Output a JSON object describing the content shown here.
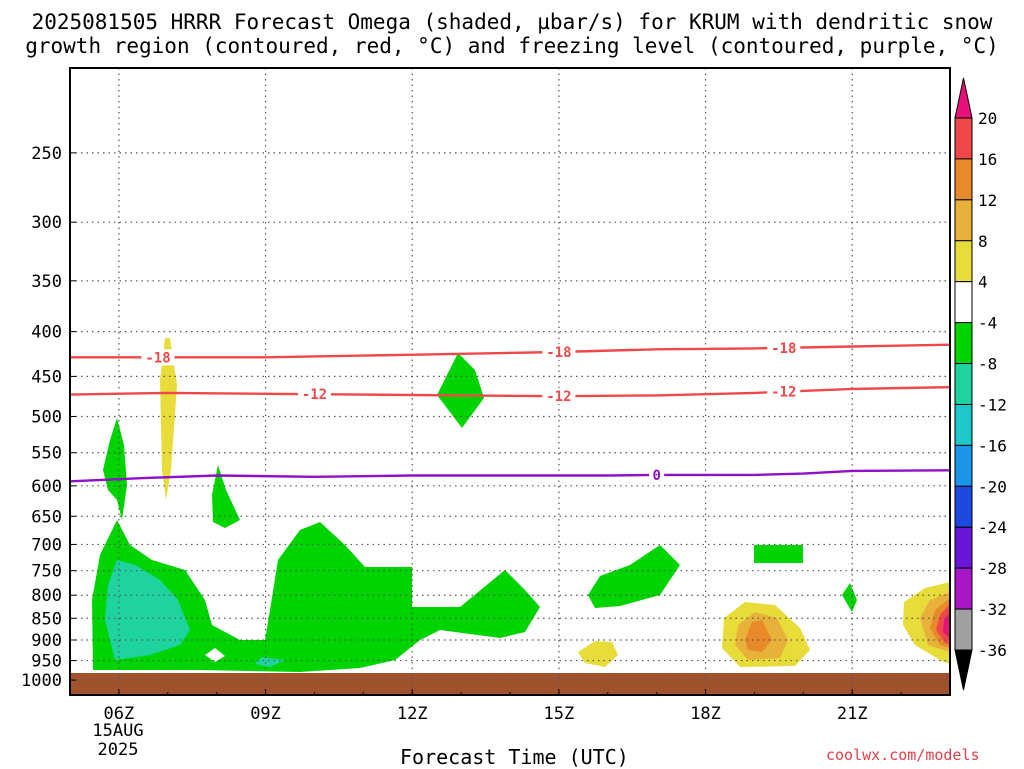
{
  "title_line1": "2025081505 HRRR Forecast Omega (shaded, µbar/s) for KRUM with dendritic snow",
  "title_line2": "growth region (contoured, red, °C) and freezing level (contoured, purple, °C)",
  "xlabel": "Forecast Time (UTC)",
  "credit": "coolwx.com/models",
  "date_line1": "15AUG",
  "date_line2": "2025",
  "colors": {
    "green": "#00d400",
    "teal": "#1fd3a0",
    "yellow": "#e8dc3a",
    "gold": "#e8b13a",
    "orange": "#e8892a",
    "red": "#f04848",
    "magenta": "#e8117a",
    "ground": "#a0522d",
    "dsg_contour": "#f04848",
    "freezing_contour": "#9010c8"
  },
  "chart_data": {
    "type": "contour",
    "x_axis": {
      "label": "Forecast Time (UTC)",
      "ticks": [
        "06Z",
        "09Z",
        "12Z",
        "15Z",
        "18Z",
        "21Z"
      ],
      "tick_hours": [
        6,
        9,
        12,
        15,
        18,
        21
      ],
      "range_hours": [
        5,
        23
      ]
    },
    "y_axis": {
      "units": "hPa",
      "ticks": [
        250,
        300,
        350,
        400,
        450,
        500,
        550,
        600,
        650,
        700,
        750,
        800,
        850,
        900,
        950,
        1000
      ],
      "range": [
        200,
        1040
      ],
      "scale": "log-pressure"
    },
    "colorbar": {
      "levels": [
        20,
        16,
        12,
        8,
        4,
        -4,
        -8,
        -12,
        -16,
        -20,
        -24,
        -28,
        -32,
        -36
      ],
      "colors": [
        "#e8117a",
        "#f04848",
        "#e8892a",
        "#e8b13a",
        "#e8dc3a",
        "#ffffff",
        "#00d400",
        "#1fd3a0",
        "#1cc8c8",
        "#1a96e8",
        "#1c4ae0",
        "#6a16d8",
        "#a816c8",
        "#a0a0a0",
        "#000000"
      ]
    },
    "contours": [
      {
        "label": "-18",
        "color": "#f04848",
        "points": [
          [
            5,
            428
          ],
          [
            7,
            428
          ],
          [
            9,
            428
          ],
          [
            11,
            426
          ],
          [
            13,
            424
          ],
          [
            15,
            422
          ],
          [
            17,
            419
          ],
          [
            19,
            418
          ],
          [
            21,
            416
          ],
          [
            23,
            414
          ]
        ],
        "label_hours": [
          6.8,
          15,
          19.6
        ]
      },
      {
        "label": "-12",
        "color": "#f04848",
        "points": [
          [
            5,
            472
          ],
          [
            7,
            470
          ],
          [
            9,
            471
          ],
          [
            11,
            472
          ],
          [
            13,
            473
          ],
          [
            15,
            474
          ],
          [
            17,
            473
          ],
          [
            19,
            470
          ],
          [
            21,
            465
          ],
          [
            23,
            463
          ]
        ],
        "label_hours": [
          10,
          15,
          19.6
        ]
      },
      {
        "label": "0",
        "color": "#9010c8",
        "points": [
          [
            5,
            593
          ],
          [
            6.5,
            588
          ],
          [
            8,
            584
          ],
          [
            10,
            586
          ],
          [
            12,
            584
          ],
          [
            14,
            584
          ],
          [
            16,
            584
          ],
          [
            17,
            583
          ],
          [
            19,
            583
          ],
          [
            20,
            581
          ],
          [
            21,
            577
          ],
          [
            23,
            576
          ]
        ],
        "label_hours": [
          17
        ]
      }
    ]
  }
}
